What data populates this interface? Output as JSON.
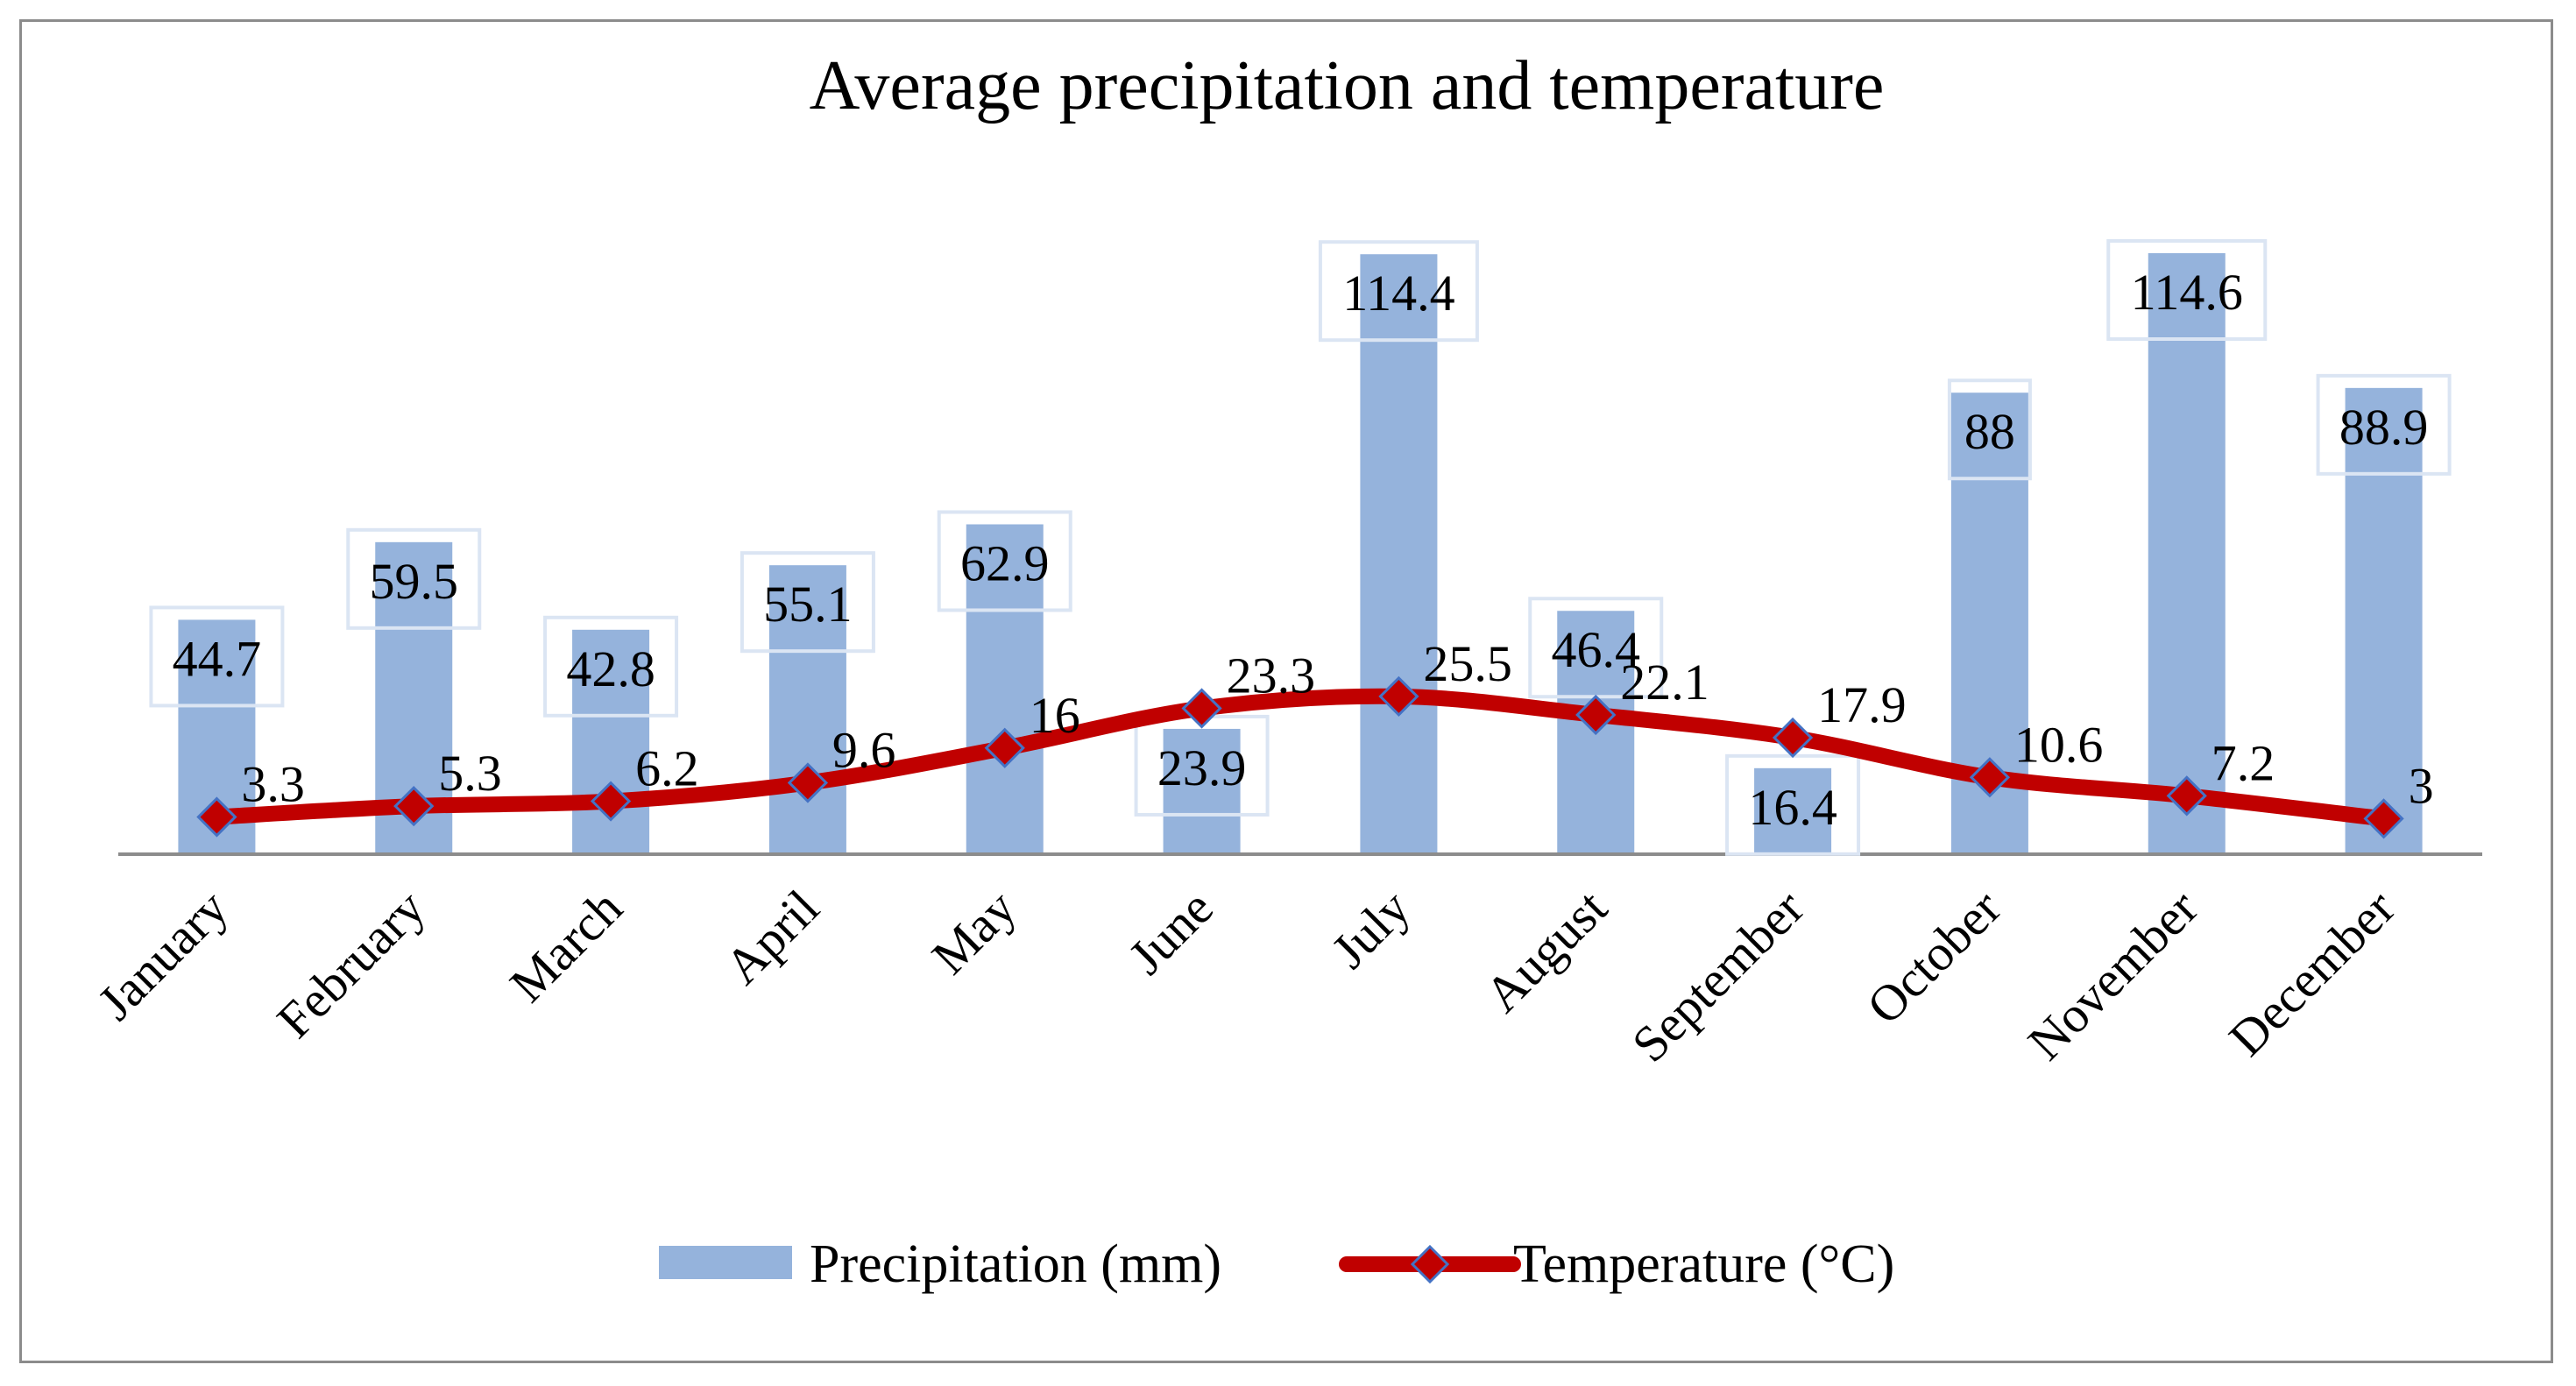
{
  "chart_data": {
    "type": "bar",
    "title": "Average precipitation and temperature",
    "categories": [
      "January",
      "February",
      "March",
      "April",
      "May",
      "June",
      "July",
      "August",
      "September",
      "October",
      "November",
      "December"
    ],
    "series": [
      {
        "name": "Precipitation (mm)",
        "type": "bar",
        "color": "#95B3DC",
        "values": [
          44.7,
          59.5,
          42.8,
          55.1,
          62.9,
          23.9,
          114.4,
          46.4,
          16.4,
          88,
          114.6,
          88.9
        ],
        "labels": [
          "44.7",
          "59.5",
          "42.8",
          "55.1",
          "62.9",
          "23.9",
          "114.4",
          "46.4",
          "16.4",
          "88",
          "114.6",
          "88.9"
        ]
      },
      {
        "name": "Temperature (°C)",
        "type": "line",
        "color": "#C00000",
        "marker": "diamond",
        "values": [
          3.3,
          5.3,
          6.2,
          9.6,
          16,
          23.3,
          25.5,
          22.1,
          17.9,
          10.6,
          7.2,
          3
        ],
        "labels": [
          "3.3",
          "5.3",
          "6.2",
          "9.6",
          "16",
          "23.3",
          "25.5",
          "22.1",
          "17.9",
          "10.6",
          "7.2",
          "3"
        ]
      }
    ],
    "legend_position": "bottom",
    "grid": false,
    "axis_color": "#8c8c8c"
  }
}
